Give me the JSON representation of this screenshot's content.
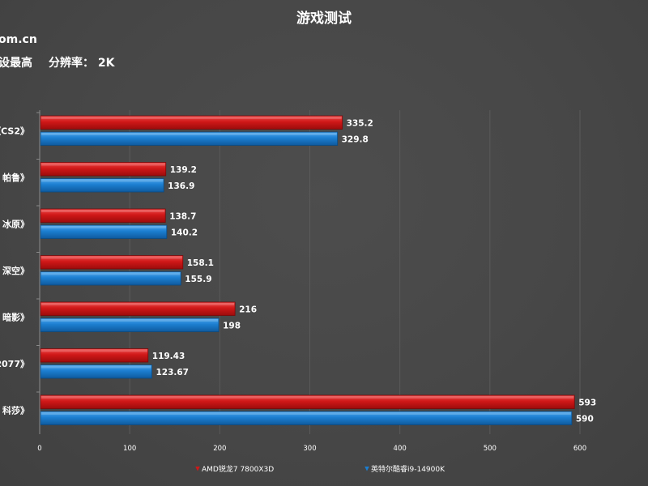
{
  "header": {
    "title": "游戏测试",
    "source_fragment": "om.cn",
    "settings_label": "设最高",
    "resolution_label": "分辨率：",
    "resolution_value": "2K"
  },
  "colors": {
    "series_a": "#d01818",
    "series_b": "#1c7ed0",
    "grid": "#5a5a5a",
    "axis": "#8a8a8a"
  },
  "chart_data": {
    "type": "bar",
    "orientation": "horizontal",
    "title": "游戏测试",
    "categories": [
      "《CS2》",
      "帕鲁》",
      "冰原》",
      "深空》",
      "暗影》",
      "2077》",
      "科莎》"
    ],
    "series": [
      {
        "name": "AMD锐龙7 7800X3D",
        "values": [
          335.2,
          139.2,
          138.7,
          158.1,
          216,
          119.43,
          593
        ]
      },
      {
        "name": "英特尔酷睿i9-14900K",
        "values": [
          329.8,
          136.9,
          140.2,
          155.9,
          198,
          123.67,
          590
        ]
      }
    ],
    "value_labels": [
      [
        "335.2",
        "139.2",
        "138.7",
        "158.1",
        "216",
        "119.43",
        "593"
      ],
      [
        "329.8",
        "136.9",
        "140.2",
        "155.9",
        "198",
        "123.67",
        "590"
      ]
    ],
    "xlim": [
      0,
      600
    ],
    "xticks": [
      0,
      100,
      200,
      300,
      400,
      500,
      600
    ],
    "xlabel": "",
    "ylabel": "",
    "grid": true,
    "legend": "bottom-center"
  }
}
